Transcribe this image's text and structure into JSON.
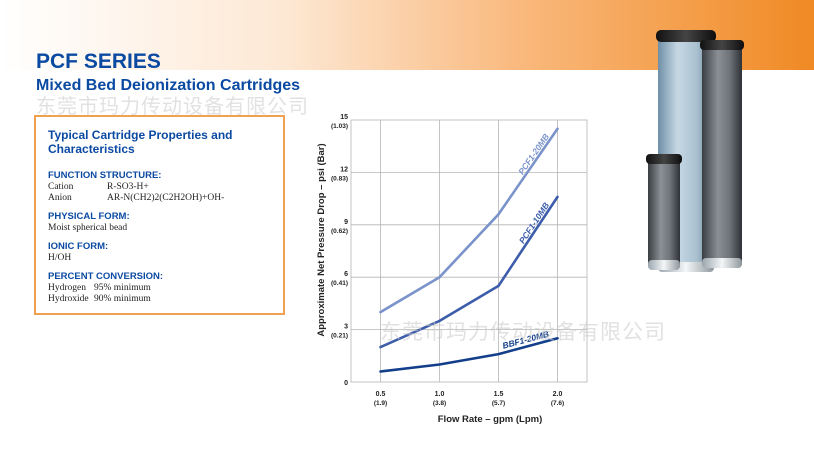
{
  "header": {
    "title": "PCF SERIES",
    "subtitle": "Mixed Bed Deionization Cartridges",
    "watermark": "东莞市玛力传动设备有限公司"
  },
  "properties": {
    "title": "Typical Cartridge Properties and Characteristics",
    "function_structure": {
      "heading": "FUNCTION STRUCTURE:",
      "cation_label": "Cation",
      "cation_value": "R-SO3-H+",
      "anion_label": "Anion",
      "anion_value": "AR-N(CH2)2(C2H2OH)+OH-"
    },
    "physical_form": {
      "heading": "PHYSICAL FORM:",
      "value": "Moist spherical bead"
    },
    "ionic_form": {
      "heading": "IONIC FORM:",
      "value": "H/OH"
    },
    "percent_conversion": {
      "heading": "PERCENT CONVERSION:",
      "hydrogen_label": "Hydrogen",
      "hydrogen_value": "95% minimum",
      "hydroxide_label": "Hydroxide",
      "hydroxide_value": "90% minimum"
    }
  },
  "chart_data": {
    "type": "line",
    "xlabel": "Flow Rate – gpm (Lpm)",
    "ylabel": "Approximate Net Pressure Drop – psi (Bar)",
    "xlim": [
      0.25,
      2.25
    ],
    "ylim": [
      0,
      15
    ],
    "grid": true,
    "x_ticks": [
      {
        "value": 0.5,
        "label": "0.5",
        "sub": "(1.9)"
      },
      {
        "value": 1.0,
        "label": "1.0",
        "sub": "(3.8)"
      },
      {
        "value": 1.5,
        "label": "1.5",
        "sub": "(5.7)"
      },
      {
        "value": 2.0,
        "label": "2.0",
        "sub": "(7.6)"
      }
    ],
    "y_ticks": [
      {
        "value": 0,
        "label": "0",
        "sub": ""
      },
      {
        "value": 3,
        "label": "3",
        "sub": "(0.21)"
      },
      {
        "value": 6,
        "label": "6",
        "sub": "(0.41)"
      },
      {
        "value": 9,
        "label": "9",
        "sub": "(0.62)"
      },
      {
        "value": 12,
        "label": "12",
        "sub": "(0.83)"
      },
      {
        "value": 15,
        "label": "15",
        "sub": "(1.03)"
      }
    ],
    "series": [
      {
        "name": "PCF1-20MB",
        "x": [
          0.5,
          1.0,
          1.5,
          2.0
        ],
        "y": [
          4.0,
          6.0,
          9.6,
          14.5
        ],
        "color": "#7b93cb"
      },
      {
        "name": "PCF1-10MB",
        "x": [
          0.5,
          1.0,
          1.5,
          2.0
        ],
        "y": [
          2.0,
          3.5,
          5.5,
          10.6
        ],
        "color": "#3d5dab"
      },
      {
        "name": "BBF1-20MB",
        "x": [
          0.5,
          1.0,
          1.5,
          2.0
        ],
        "y": [
          0.6,
          1.0,
          1.6,
          2.5
        ],
        "color": "#123e8a"
      }
    ]
  }
}
